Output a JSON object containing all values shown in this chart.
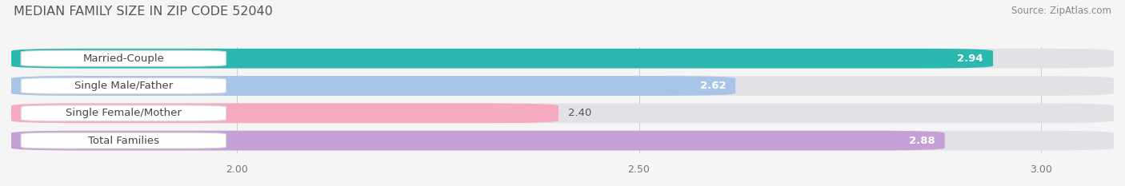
{
  "title": "MEDIAN FAMILY SIZE IN ZIP CODE 52040",
  "source": "Source: ZipAtlas.com",
  "categories": [
    "Married-Couple",
    "Single Male/Father",
    "Single Female/Mother",
    "Total Families"
  ],
  "values": [
    2.94,
    2.62,
    2.4,
    2.88
  ],
  "bar_colors": [
    "#2ab8b0",
    "#a8c4e8",
    "#f5aac0",
    "#c4a0d4"
  ],
  "label_colors": [
    "#ffffff",
    "#ffffff",
    "#666666",
    "#ffffff"
  ],
  "xlim_min": 1.72,
  "xlim_max": 3.09,
  "xticks": [
    2.0,
    2.5,
    3.0
  ],
  "background_color": "#f5f5f5",
  "bar_bg_color": "#e2e2e6",
  "title_fontsize": 11.5,
  "source_fontsize": 8.5,
  "label_fontsize": 9.5,
  "value_fontsize": 9.5
}
